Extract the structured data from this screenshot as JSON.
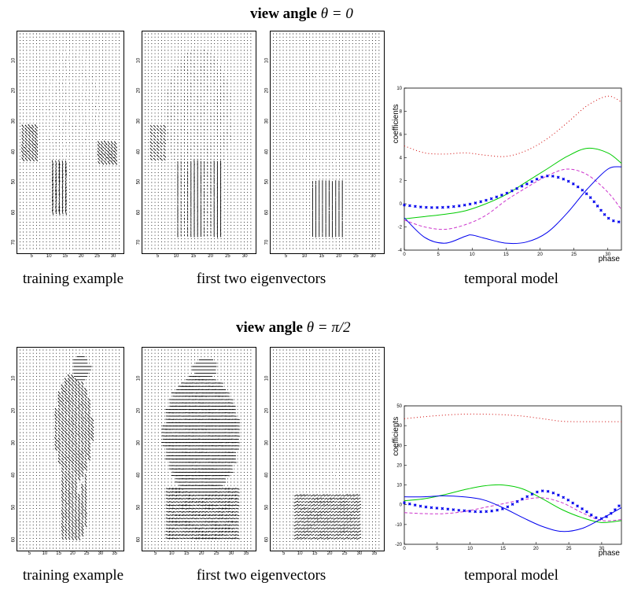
{
  "sections": [
    {
      "title_bold": "view angle",
      "title_math": "θ = 0",
      "captions": {
        "training": "training example",
        "eigen": "first two eigenvectors",
        "temporal": "temporal model"
      },
      "flow_y_ticks": [
        "10",
        "20",
        "30",
        "40",
        "50",
        "60",
        "70"
      ],
      "flow_x_ticks": [
        "5",
        "10",
        "15",
        "20",
        "25",
        "30"
      ]
    },
    {
      "title_bold": "view angle",
      "title_math": "θ = π/2",
      "captions": {
        "training": "training example",
        "eigen": "first two eigenvectors",
        "temporal": "temporal model"
      },
      "flow_y_ticks": [
        "10",
        "20",
        "30",
        "40",
        "50",
        "60"
      ],
      "flow_x_ticks": [
        "5",
        "10",
        "15",
        "20",
        "25",
        "30",
        "35"
      ]
    }
  ],
  "chart_data": [
    {
      "type": "line",
      "ylabel": "coefficients",
      "xlabel": "phase",
      "xlim": [
        0,
        32
      ],
      "ylim": [
        -4,
        10
      ],
      "yticks": [
        -4,
        -2,
        0,
        2,
        4,
        6,
        8,
        10
      ],
      "xticks": [
        0,
        5,
        10,
        15,
        20,
        25,
        30
      ],
      "series": [
        {
          "color": "#d00000",
          "style": "dotted",
          "x": [
            0,
            3,
            6,
            9,
            12,
            15,
            18,
            21,
            24,
            27,
            30,
            32
          ],
          "y": [
            5.0,
            4.4,
            4.3,
            4.4,
            4.2,
            4.1,
            4.6,
            5.6,
            7.0,
            8.5,
            9.3,
            8.8
          ]
        },
        {
          "color": "#00cc00",
          "style": "solid",
          "x": [
            0,
            3,
            6,
            9,
            12,
            15,
            18,
            21,
            24,
            27,
            30,
            32
          ],
          "y": [
            -1.3,
            -1.1,
            -0.9,
            -0.6,
            0.0,
            0.8,
            1.9,
            3.0,
            4.1,
            4.8,
            4.4,
            3.5
          ]
        },
        {
          "color": "#cc33cc",
          "style": "dashed",
          "x": [
            0,
            3,
            6,
            9,
            12,
            15,
            18,
            21,
            24,
            27,
            30,
            32
          ],
          "y": [
            -1.4,
            -2.0,
            -2.2,
            -1.8,
            -1.0,
            0.3,
            1.4,
            2.4,
            3.0,
            2.5,
            1.0,
            -0.5
          ]
        },
        {
          "color": "#0000ee",
          "style": "crosses",
          "x": [
            0,
            3,
            6,
            9,
            12,
            15,
            18,
            21,
            24,
            27,
            30,
            32
          ],
          "y": [
            -0.1,
            -0.3,
            -0.3,
            -0.1,
            0.3,
            0.9,
            1.7,
            2.4,
            2.0,
            0.8,
            -1.2,
            -1.6
          ]
        },
        {
          "color": "#0000ee",
          "style": "solid",
          "x": [
            0,
            3,
            6,
            9,
            10,
            12,
            15,
            18,
            21,
            24,
            27,
            30,
            32
          ],
          "y": [
            -1.2,
            -2.9,
            -3.4,
            -2.8,
            -2.7,
            -3.0,
            -3.4,
            -3.3,
            -2.5,
            -0.8,
            1.3,
            3.0,
            3.2
          ]
        }
      ]
    },
    {
      "type": "line",
      "ylabel": "coefficients",
      "xlabel": "phase",
      "xlim": [
        0,
        33
      ],
      "ylim": [
        -20,
        50
      ],
      "yticks": [
        -20,
        -10,
        0,
        10,
        20,
        30,
        40,
        50
      ],
      "xticks": [
        0,
        5,
        10,
        15,
        20,
        25,
        30
      ],
      "series": [
        {
          "color": "#d00000",
          "style": "dotted",
          "x": [
            0,
            3,
            6,
            9,
            12,
            15,
            18,
            21,
            24,
            27,
            30,
            33
          ],
          "y": [
            43.5,
            44.5,
            45.3,
            45.8,
            45.8,
            45.5,
            44.8,
            43.5,
            42.2,
            42.0,
            42.0,
            42.0
          ]
        },
        {
          "color": "#00cc00",
          "style": "solid",
          "x": [
            0,
            3,
            6,
            9,
            12,
            15,
            18,
            21,
            24,
            27,
            30,
            33
          ],
          "y": [
            2.0,
            3.0,
            5.0,
            7.5,
            9.5,
            10.0,
            8.0,
            3.0,
            -2.5,
            -6.5,
            -9.0,
            -8.0
          ]
        },
        {
          "color": "#cc33cc",
          "style": "dashed",
          "x": [
            0,
            3,
            6,
            9,
            12,
            15,
            18,
            21,
            24,
            27,
            30,
            33
          ],
          "y": [
            -4.0,
            -4.5,
            -4.5,
            -3.5,
            -1.5,
            0.5,
            2.5,
            3.5,
            1.0,
            -4.0,
            -8.0,
            -7.5
          ]
        },
        {
          "color": "#0000ee",
          "style": "crosses",
          "x": [
            0,
            3,
            6,
            9,
            12,
            15,
            18,
            21,
            24,
            27,
            30,
            33
          ],
          "y": [
            1.0,
            -1.0,
            -2.0,
            -3.0,
            -3.5,
            -2.0,
            3.0,
            7.0,
            4.0,
            -2.0,
            -7.0,
            0.5
          ]
        },
        {
          "color": "#0000ee",
          "style": "solid",
          "x": [
            0,
            3,
            6,
            9,
            12,
            15,
            18,
            21,
            24,
            27,
            30,
            33
          ],
          "y": [
            4.0,
            4.0,
            4.5,
            4.0,
            2.5,
            -1.5,
            -6.5,
            -11.0,
            -13.5,
            -12.0,
            -7.0,
            -1.5
          ]
        }
      ]
    }
  ]
}
